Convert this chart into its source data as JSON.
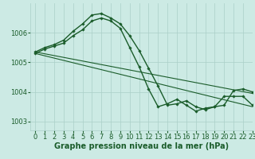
{
  "background_color": "#cceae4",
  "grid_color": "#aacfc8",
  "line_color": "#1a5c2a",
  "xlabel": "Graphe pression niveau de la mer (hPa)",
  "xlabel_fontsize": 7.0,
  "tick_label_fontsize": 6.0,
  "xlim": [
    -0.5,
    23
  ],
  "ylim": [
    1002.7,
    1007.0
  ],
  "yticks": [
    1003,
    1004,
    1005,
    1006
  ],
  "xticks": [
    0,
    1,
    2,
    3,
    4,
    5,
    6,
    7,
    8,
    9,
    10,
    11,
    12,
    13,
    14,
    15,
    16,
    17,
    18,
    19,
    20,
    21,
    22,
    23
  ],
  "series": [
    {
      "x": [
        0,
        23
      ],
      "y": [
        1005.35,
        1003.95
      ],
      "lw": 0.8,
      "marker": false
    },
    {
      "x": [
        0,
        23
      ],
      "y": [
        1005.3,
        1003.5
      ],
      "lw": 0.8,
      "marker": false
    },
    {
      "x": [
        0,
        1,
        2,
        3,
        4,
        5,
        6,
        7,
        8,
        9,
        10,
        11,
        12,
        13,
        14,
        15,
        16,
        17,
        18,
        19,
        20,
        21,
        22,
        23
      ],
      "y": [
        1005.35,
        1005.5,
        1005.6,
        1005.75,
        1006.05,
        1006.3,
        1006.6,
        1006.65,
        1006.5,
        1006.3,
        1005.9,
        1005.4,
        1004.8,
        1004.2,
        1003.55,
        1003.6,
        1003.7,
        1003.5,
        1003.4,
        1003.5,
        1003.55,
        1004.05,
        1004.1,
        1004.0
      ],
      "lw": 1.0,
      "marker": true
    },
    {
      "x": [
        0,
        1,
        2,
        3,
        4,
        5,
        6,
        7,
        8,
        9,
        10,
        11,
        12,
        13,
        14,
        15,
        16,
        17,
        18,
        19,
        20,
        21,
        22,
        23
      ],
      "y": [
        1005.3,
        1005.45,
        1005.55,
        1005.65,
        1005.9,
        1006.1,
        1006.4,
        1006.5,
        1006.4,
        1006.15,
        1005.5,
        1004.85,
        1004.1,
        1003.5,
        1003.6,
        1003.75,
        1003.55,
        1003.35,
        1003.45,
        1003.5,
        1003.85,
        1003.85,
        1003.85,
        1003.55
      ],
      "lw": 1.0,
      "marker": true
    }
  ]
}
